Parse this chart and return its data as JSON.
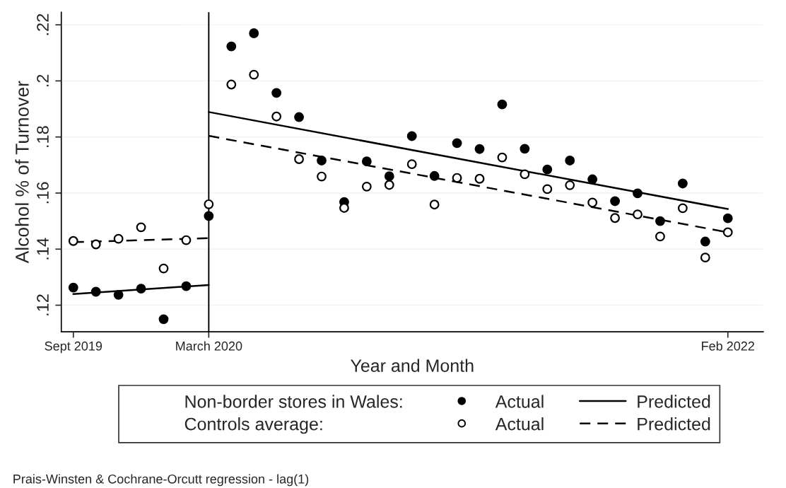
{
  "chart_data": {
    "type": "scatter",
    "xlabel": "Year and Month",
    "ylabel": "Alcohol % of Turnover",
    "legend_title": [
      "Non-border stores in Wales:",
      "Controls average:"
    ],
    "x": [
      "2019-09",
      "2019-10",
      "2019-11",
      "2019-12",
      "2020-01",
      "2020-02",
      "2020-03",
      "2020-04",
      "2020-05",
      "2020-06",
      "2020-07",
      "2020-08",
      "2020-09",
      "2020-10",
      "2020-11",
      "2020-12",
      "2021-01",
      "2021-02",
      "2021-03",
      "2021-04",
      "2021-05",
      "2021-06",
      "2021-07",
      "2021-08",
      "2021-09",
      "2021-10",
      "2021-11",
      "2021-12",
      "2022-01",
      "2022-02"
    ],
    "series": [
      {
        "name": "Actual",
        "color": "#000000",
        "values": [
          0.1263,
          0.1248,
          0.1237,
          0.1259,
          0.115,
          0.1268,
          0.1518,
          0.2123,
          0.217,
          0.1957,
          0.1871,
          0.1716,
          0.1568,
          0.1713,
          0.166,
          0.1803,
          0.1661,
          0.1778,
          0.1757,
          0.1916,
          0.1758,
          0.1684,
          0.1716,
          0.1649,
          0.1571,
          0.1599,
          0.15,
          0.1634,
          0.1427,
          0.151
        ]
      },
      {
        "name": "Actual",
        "color": "#ffffff",
        "values": [
          0.1429,
          0.1417,
          0.1437,
          0.1478,
          0.1331,
          0.1432,
          0.156,
          0.1987,
          0.2022,
          0.1873,
          0.1721,
          0.1659,
          0.1547,
          0.1623,
          0.1629,
          0.1703,
          0.1559,
          0.1654,
          0.1651,
          0.1727,
          0.1667,
          0.1614,
          0.1628,
          0.1566,
          0.1511,
          0.1524,
          0.1445,
          0.1546,
          0.137,
          0.146
        ]
      },
      {
        "name": "Predicted",
        "type": "line",
        "color": "#000000",
        "line_style": "solid",
        "x": [
          "2019-09",
          "2020-03"
        ],
        "values": [
          0.124,
          0.1272
        ]
      },
      {
        "type": "line",
        "color": "#000000",
        "line_style": "solid",
        "x": [
          "2020-03",
          "2022-02"
        ],
        "values": [
          0.1889,
          0.1543
        ]
      },
      {
        "name": "Predicted",
        "type": "line",
        "color": "#000000",
        "line_style": "dashed",
        "x": [
          "2019-09",
          "2020-03"
        ],
        "values": [
          0.1425,
          0.1439
        ]
      },
      {
        "type": "line",
        "color": "#000000",
        "line_style": "dashed",
        "x": [
          "2020-03",
          "2022-02"
        ],
        "values": [
          0.1804,
          0.146
        ]
      }
    ],
    "ylim": [
      0.1105,
      0.2245
    ],
    "yticks": [
      {
        "value": 0.12,
        "label": ".12"
      },
      {
        "value": 0.14,
        "label": ".14"
      },
      {
        "value": 0.16,
        "label": ".16"
      },
      {
        "value": 0.18,
        "label": ".18"
      },
      {
        "value": 0.2,
        "label": ".2"
      },
      {
        "value": 0.22,
        "label": ".22"
      }
    ],
    "xlim": [
      "2019-08-15",
      "2022-03-18"
    ],
    "xticks": [
      {
        "value": "2019-09",
        "label": "Sept 2019"
      },
      {
        "value": "2020-03",
        "label": "March 2020"
      },
      {
        "value": "2022-02",
        "label": "Feb 2022"
      }
    ],
    "ref_lines": [
      {
        "axis": "x",
        "value": "2020-03",
        "color": "#000000",
        "line_style": "solid"
      }
    ],
    "grid": "y",
    "legend": "bottom",
    "annotations": [
      "Prais-Winsten & Cochrane-Orcutt regression - lag(1)"
    ]
  }
}
